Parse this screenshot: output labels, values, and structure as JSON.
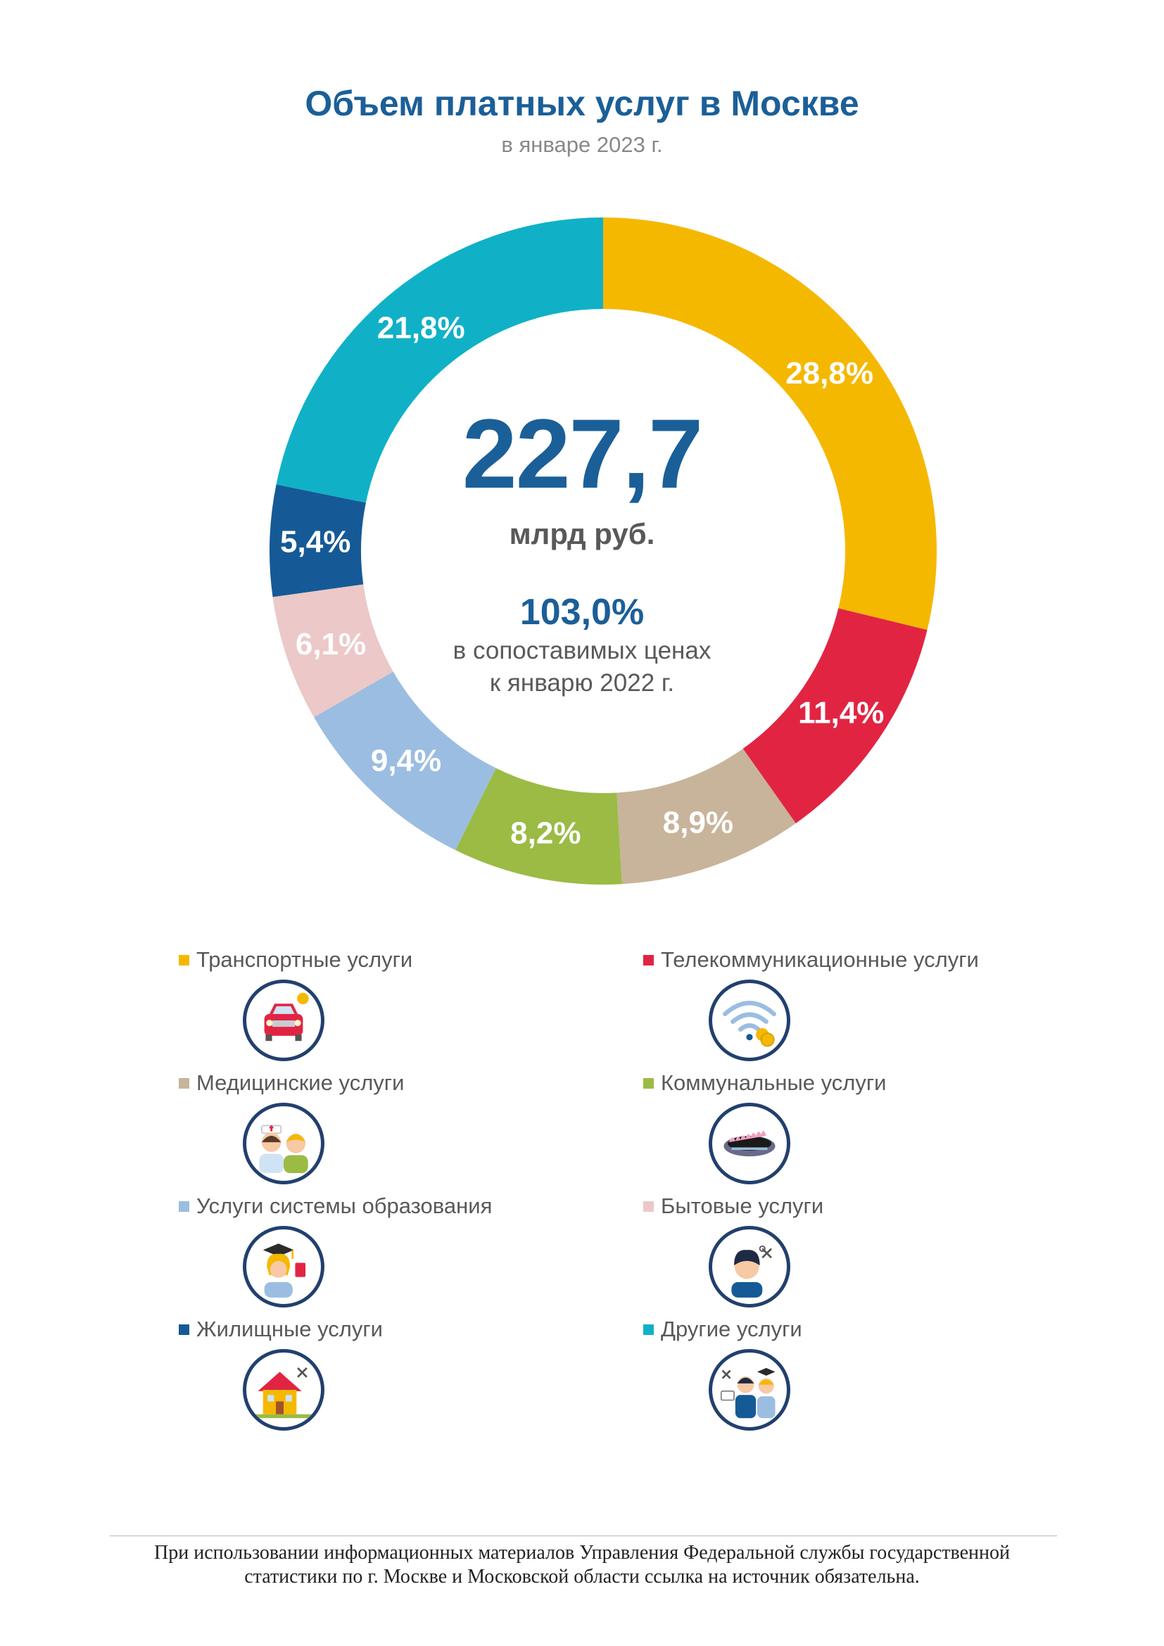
{
  "header": {
    "title": "Объем платных услуг в Москве",
    "subtitle": "в январе 2023 г."
  },
  "center": {
    "total": "227,7",
    "unit": "млрд руб.",
    "index": "103,0%",
    "note_line1": "в сопоставимых ценах",
    "note_line2": "к январю 2022 г."
  },
  "chart_data": {
    "type": "pie",
    "variant": "donut",
    "title": "Объем платных услуг в Москве",
    "subtitle": "в январе 2023 г.",
    "unit": "%",
    "total": {
      "value": 227.7,
      "unit": "млрд руб."
    },
    "categories": [
      "Транспортные услуги",
      "Телекоммуникационные услуги",
      "Медицинские услуги",
      "Коммунальные услуги",
      "Услуги системы образования",
      "Бытовые услуги",
      "Жилищные услуги",
      "Другие услуги"
    ],
    "values": [
      28.8,
      11.4,
      8.9,
      8.2,
      9.4,
      6.1,
      5.4,
      21.8
    ],
    "labels": [
      "28,8%",
      "11,4%",
      "8,9%",
      "8,2%",
      "9,4%",
      "6,1%",
      "5,4%",
      "21,8%"
    ],
    "colors": [
      "#f5b800",
      "#e22443",
      "#c8b49b",
      "#9bbb45",
      "#9bbde1",
      "#ecc8c8",
      "#155a96",
      "#10b1c6"
    ],
    "start": "12 o'clock",
    "direction": "clockwise",
    "legend": "bottom, two columns"
  },
  "legend": {
    "items": [
      {
        "label": "Транспортные услуги",
        "color": "#f5b800",
        "icon": "car-icon"
      },
      {
        "label": "Телекоммуникационные услуги",
        "color": "#e22443",
        "icon": "wifi-icon"
      },
      {
        "label": "Медицинские услуги",
        "color": "#c8b49b",
        "icon": "doctor-patient-icon"
      },
      {
        "label": "Коммунальные услуги",
        "color": "#9bbb45",
        "icon": "gas-stove-icon"
      },
      {
        "label": "Услуги системы образования",
        "color": "#9bbde1",
        "icon": "graduate-icon"
      },
      {
        "label": "Бытовые услуги",
        "color": "#ecc8c8",
        "icon": "barber-icon"
      },
      {
        "label": "Жилищные услуги",
        "color": "#155a96",
        "icon": "house-icon"
      },
      {
        "label": "Другие услуги",
        "color": "#10b1c6",
        "icon": "services-group-icon"
      }
    ]
  },
  "footer": {
    "line1": "При использовании информационных материалов Управления Федеральной службы государственной",
    "line2": "статистики по г. Москве и Московской области ссылка на источник обязательна."
  }
}
